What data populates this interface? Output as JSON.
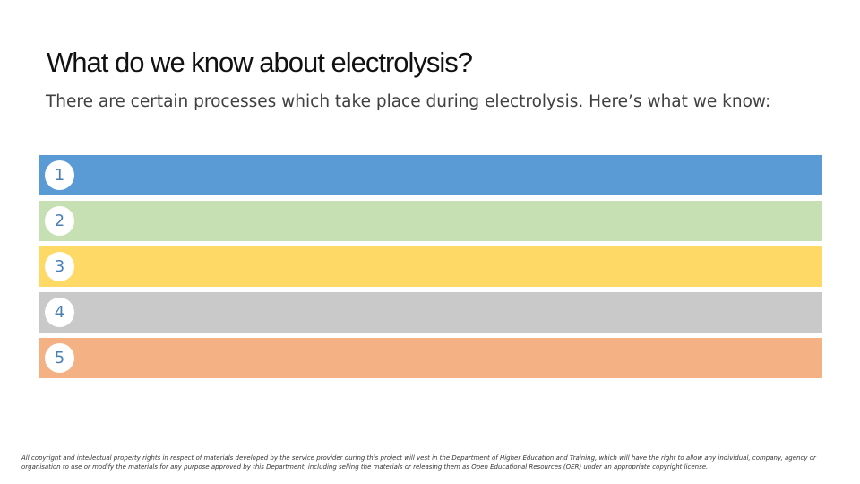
{
  "title": "What do we know about electrolysis?",
  "subtitle": "There are certain processes which take place during electrolysis.  Here’s what we know:",
  "rows": [
    {
      "number": "1",
      "color": "#5b9bd5"
    },
    {
      "number": "2",
      "color": "#c6e0b4"
    },
    {
      "number": "3",
      "color": "#ffd966"
    },
    {
      "number": "4",
      "color": "#c9c9c9"
    },
    {
      "number": "5",
      "color": "#f4b183"
    }
  ],
  "footer": "All copyright and intellectual property rights in respect of materials developed by the service provider during this project will vest in the Department of Higher Education and Training, which will have the right to allow any individual, company, agency or organisation to use or modify the materials for any purpose approved by this Department, including selling the materials or releasing them as Open Educational Resources (OER) under an appropriate copyright license."
}
